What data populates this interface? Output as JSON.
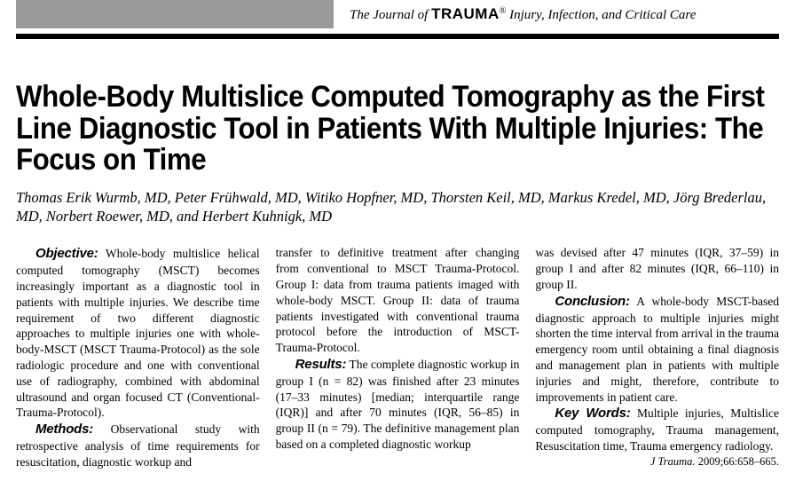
{
  "header": {
    "journal_prefix": "The Journal of ",
    "journal_brand": "TRAUMA",
    "journal_reg": "®",
    "journal_suffix": " Injury, Infection, and Critical Care"
  },
  "title": "Whole-Body Multislice Computed Tomography as the First Line Diagnostic Tool in Patients With Multiple Injuries: The Focus on Time",
  "authors": "Thomas Erik Wurmb, MD, Peter Frühwald, MD, Witiko Hopfner, MD, Thorsten Keil, MD, Markus Kredel, MD, Jörg Brederlau, MD, Norbert Roewer, MD, and Herbert Kuhnigk, MD",
  "sections": {
    "objective_head": "Objective:",
    "objective_body": " Whole-body multislice helical computed tomography (MSCT) becomes increasingly important as a diagnostic tool in patients with multiple injuries. We describe time requirement of two different diagnostic approaches to multiple injuries one with whole-body-MSCT (MSCT Trauma-Protocol) as the sole radiologic procedure and one with conventional use of radiography, combined with abdominal ultrasound and organ focused CT (Conventional-Trauma-Protocol).",
    "methods_head": "Methods:",
    "methods_body": " Observational study with retrospective analysis of time requirements for resuscitation, diagnostic workup and",
    "col2_top": "transfer to definitive treatment after changing from conventional to MSCT Trauma-Protocol. Group I: data from trauma patients imaged with whole-body MSCT. Group II: data of trauma patients investigated with conventional trauma protocol before the introduction of MSCT-Trauma-Protocol.",
    "results_head": "Results:",
    "results_body": " The complete diagnostic workup in group I (n = 82) was finished after 23 minutes (17–33 minutes) [median; interquartile range (IQR)] and after 70 minutes (IQR, 56–85) in group II (n = 79). The definitive management plan based on a completed diagnostic workup",
    "col3_top": "was devised after 47 minutes (IQR, 37–59) in group I and after 82 minutes (IQR, 66–110) in group II.",
    "conclusion_head": "Conclusion:",
    "conclusion_body": " A whole-body MSCT-based diagnostic approach to multiple injuries might shorten the time interval from arrival in the trauma emergency room until obtaining a final diagnosis and management plan in patients with multiple injuries and might, therefore, contribute to improvements in patient care.",
    "keywords_head": "Key Words:",
    "keywords_body": " Multiple injuries, Multislice computed tomography, Trauma management, Resuscitation time, Trauma emergency radiology."
  },
  "citation": {
    "journal": "J Trauma.",
    "ref": " 2009;66:658–665."
  },
  "colors": {
    "gray_bar": "#999999",
    "rule": "#000000",
    "text": "#000000",
    "bg": "#ffffff"
  },
  "typography": {
    "title_fontsize": 34,
    "body_fontsize": 13.5,
    "author_fontsize": 16.5
  }
}
